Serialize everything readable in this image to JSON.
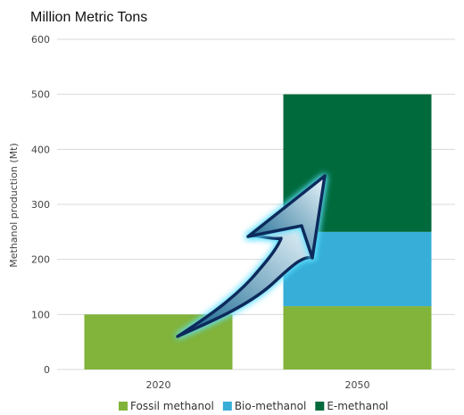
{
  "chart_data": {
    "type": "bar",
    "stacked": true,
    "title": "Million Metric Tons",
    "xlabel": "",
    "ylabel": "Methanol production (Mt)",
    "ylim": [
      0,
      600
    ],
    "yticks": [
      0,
      100,
      200,
      300,
      400,
      500,
      600
    ],
    "grid": true,
    "legend_position": "bottom",
    "categories": [
      "2020",
      "2050"
    ],
    "series": [
      {
        "name": "Fossil methanol",
        "color": "#82b33a",
        "values": [
          100,
          115
        ]
      },
      {
        "name": "Bio-methanol",
        "color": "#36aed8",
        "values": [
          0,
          135
        ]
      },
      {
        "name": "E-methanol",
        "color": "#006a3c",
        "values": [
          0,
          250
        ]
      }
    ],
    "annotations": [
      {
        "type": "arrow",
        "meaning": "growth from 2020 to 2050",
        "fill_start": "#0b5f8a",
        "fill_end": "#eaf6fb",
        "outline": "#0d2a5c",
        "glow": "#5fe0ff"
      }
    ]
  }
}
